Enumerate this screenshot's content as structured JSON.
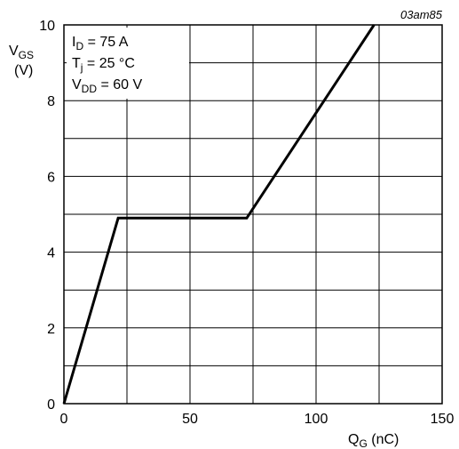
{
  "figure_ref": "03am85",
  "conditions": [
    {
      "main": "I",
      "sub": "D",
      "rest": " = 75 A"
    },
    {
      "main": "T",
      "sub": "j",
      "rest": " = 25 °C"
    },
    {
      "main": "V",
      "sub": "DD",
      "rest": " = 60 V"
    }
  ],
  "chart_data": {
    "type": "line",
    "title": "",
    "xlabel": {
      "main": "Q",
      "sub": "G",
      "rest": " (nC)"
    },
    "ylabel": {
      "main": "V",
      "sub": "GS",
      "unit": "(V)"
    },
    "xlim": [
      0,
      150
    ],
    "ylim": [
      0,
      10
    ],
    "x_major_ticks": [
      0,
      50,
      100,
      150
    ],
    "x_tick_labels": [
      "0",
      "50",
      "100",
      "150"
    ],
    "x_grid_step": 25,
    "y_major_ticks": [
      0,
      2,
      4,
      6,
      8,
      10
    ],
    "y_tick_labels": [
      "0",
      "2",
      "4",
      "6",
      "8",
      "10"
    ],
    "y_grid_step": 1,
    "grid": true,
    "series": [
      {
        "x": [
          0,
          21.5,
          72.5,
          123
        ],
        "y": [
          0,
          4.9,
          4.9,
          10
        ]
      }
    ]
  }
}
